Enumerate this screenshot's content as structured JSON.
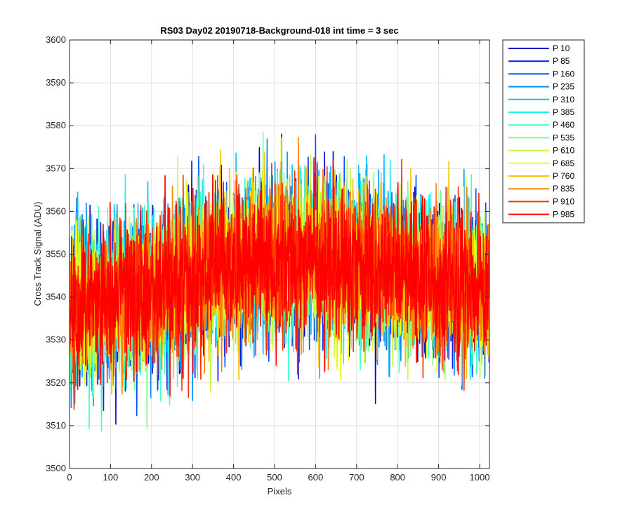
{
  "chart_data": {
    "type": "line",
    "title": "RS03 Day02 20190718-Background-018 int time = 3 sec",
    "xlabel": "Pixels",
    "ylabel": "Cross Track Signal (ADU)",
    "xlim": [
      0,
      1024
    ],
    "ylim": [
      3500,
      3600
    ],
    "xticks": [
      0,
      100,
      200,
      300,
      400,
      500,
      600,
      700,
      800,
      900,
      1000
    ],
    "yticks": [
      3500,
      3510,
      3520,
      3530,
      3540,
      3550,
      3560,
      3570,
      3580,
      3590,
      3600
    ],
    "grid": true,
    "legend_position": "outside-top-right",
    "series": [
      {
        "name": "P 10",
        "color": "#0000c8"
      },
      {
        "name": "P 85",
        "color": "#0020e6"
      },
      {
        "name": "P 160",
        "color": "#0050ff"
      },
      {
        "name": "P 235",
        "color": "#0090ff"
      },
      {
        "name": "P 310",
        "color": "#00c0ff"
      },
      {
        "name": "P 385",
        "color": "#20f0f0"
      },
      {
        "name": "P 460",
        "color": "#40ffc0"
      },
      {
        "name": "P 535",
        "color": "#80ff80"
      },
      {
        "name": "P 610",
        "color": "#c0ff40"
      },
      {
        "name": "P 685",
        "color": "#f0ff10"
      },
      {
        "name": "P 760",
        "color": "#ffc000"
      },
      {
        "name": "P 835",
        "color": "#ff8000"
      },
      {
        "name": "P 910",
        "color": "#ff3000"
      },
      {
        "name": "P 985",
        "color": "#ff0000"
      }
    ],
    "profile": {
      "x": [
        0,
        100,
        200,
        300,
        400,
        500,
        600,
        700,
        800,
        900,
        1000,
        1024
      ],
      "y": [
        3537,
        3539,
        3541,
        3545,
        3548,
        3549,
        3549,
        3548,
        3546,
        3544,
        3542,
        3541
      ]
    },
    "noise_std_adu": 8.5
  }
}
